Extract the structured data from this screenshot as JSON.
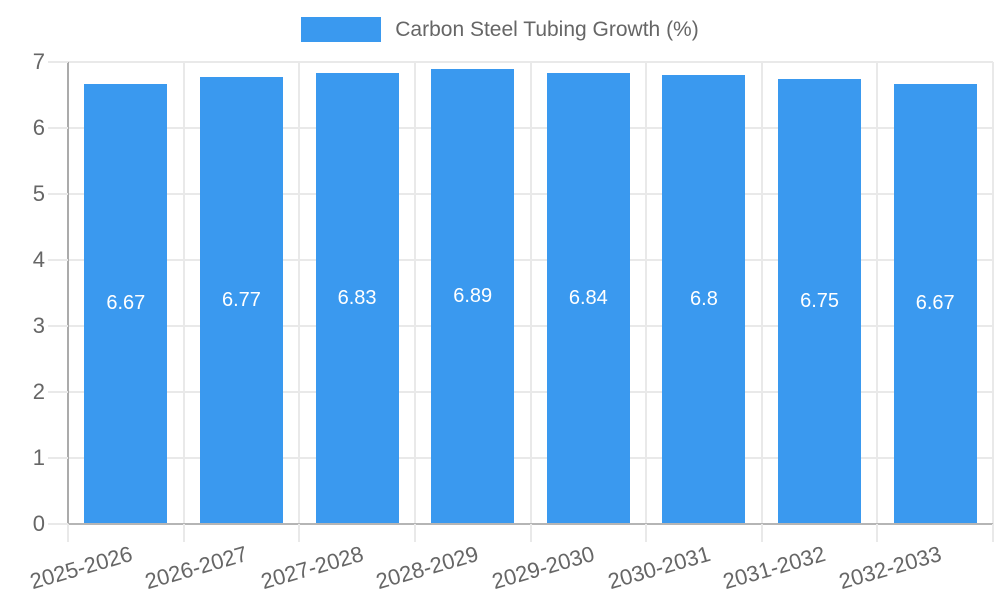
{
  "colors": {
    "bar": "#3a99ef",
    "axis_text": "#666666",
    "grid": "#e9e9e9",
    "axis_line_y": "#ababab",
    "axis_line_x": "#b5b5b5",
    "value_label": "#ffffff",
    "background": "#ffffff"
  },
  "chart_data": {
    "type": "bar",
    "title": "",
    "legend": "Carbon Steel Tubing Growth (%)",
    "legend_position": "top",
    "categories": [
      "2025-2026",
      "2026-2027",
      "2027-2028",
      "2028-2029",
      "2029-2030",
      "2030-2031",
      "2031-2032",
      "2032-2033"
    ],
    "values": [
      6.67,
      6.77,
      6.83,
      6.89,
      6.84,
      6.8,
      6.75,
      6.67
    ],
    "value_labels": [
      "6.67",
      "6.77",
      "6.83",
      "6.89",
      "6.84",
      "6.8",
      "6.75",
      "6.67"
    ],
    "xlabel": "",
    "ylabel": "",
    "ylim": [
      0,
      7
    ],
    "yticks": [
      "0",
      "1",
      "2",
      "3",
      "4",
      "5",
      "6",
      "7"
    ],
    "grid": true
  }
}
